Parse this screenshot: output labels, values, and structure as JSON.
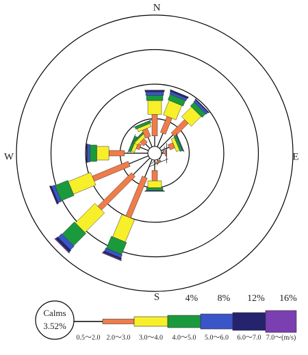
{
  "chart_data": {
    "type": "windrose",
    "compass": [
      "N",
      "E",
      "S",
      "W"
    ],
    "rlim": [
      0,
      16
    ],
    "rticks": [
      {
        "value": 4,
        "label": "4%"
      },
      {
        "value": 8,
        "label": "8%"
      },
      {
        "value": 12,
        "label": "12%"
      },
      {
        "value": 16,
        "label": "16%"
      }
    ],
    "calms": {
      "label": "Calms",
      "value": 3.52,
      "value_label": "3.52%"
    },
    "series": [
      {
        "name": "0.5～2.0",
        "color": "#000000",
        "values": [
          2.0,
          2.5,
          3.0,
          1.8,
          1.2,
          0.8,
          0.6,
          1.0,
          2.0,
          3.0,
          3.5,
          3.2,
          3.5,
          1.8,
          1.5,
          2.0
        ]
      },
      {
        "name": "2.0～3.0",
        "color": "#f07c4a",
        "values": [
          2.5,
          2.0,
          2.2,
          0.6,
          0.2,
          0,
          0,
          0.2,
          1.2,
          5.0,
          5.5,
          4.5,
          1.8,
          0.4,
          0.6,
          1.0
        ]
      },
      {
        "name": "3.0～4.0",
        "color": "#f7ef2a",
        "values": [
          1.6,
          1.8,
          1.6,
          0.4,
          0,
          0,
          0,
          0,
          0.8,
          2.8,
          3.2,
          2.8,
          1.4,
          0.4,
          0.4,
          0.4
        ]
      },
      {
        "name": "4.0～5.0",
        "color": "#1a9a3c",
        "values": [
          0.6,
          0.7,
          0.6,
          0.3,
          0,
          0,
          0,
          0,
          0.3,
          1.5,
          2.0,
          1.6,
          0.8,
          0.3,
          0.2,
          0.3
        ]
      },
      {
        "name": "5.0～6.0",
        "color": "#3a55c8",
        "values": [
          0.4,
          0.3,
          0.3,
          0.1,
          0,
          0,
          0,
          0,
          0.1,
          0.4,
          0.6,
          0.4,
          0.3,
          0,
          0,
          0
        ]
      },
      {
        "name": "6.0～7.0",
        "color": "#25236e",
        "values": [
          0.2,
          0.2,
          0.1,
          0,
          0,
          0,
          0,
          0,
          0,
          0.2,
          0.3,
          0.2,
          0.1,
          0,
          0,
          0
        ]
      },
      {
        "name": "7.0～(m/s)",
        "color": "#7a3fb0",
        "values": [
          0,
          0,
          0,
          0,
          0,
          0,
          0,
          0,
          0,
          0.1,
          0.1,
          0,
          0,
          0,
          0,
          0
        ]
      }
    ]
  }
}
